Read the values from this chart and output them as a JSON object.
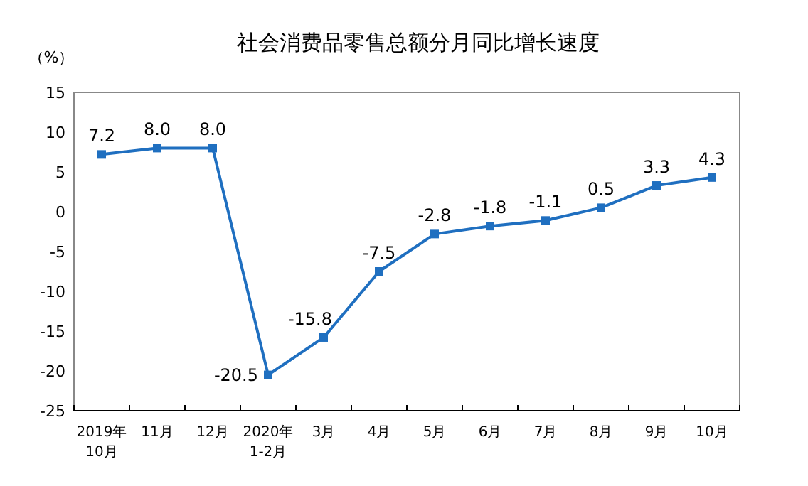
{
  "chart_data": {
    "type": "line",
    "title": "社会消费品零售总额分月同比增长速度",
    "ylabel": "（%）",
    "categories": [
      "2019年\n10月",
      "11月",
      "12月",
      "2020年\n1-2月",
      "3月",
      "4月",
      "5月",
      "6月",
      "7月",
      "8月",
      "9月",
      "10月"
    ],
    "series": [
      {
        "color": "#1f6fc0",
        "values": [
          7.2,
          8.0,
          8.0,
          -20.5,
          -15.8,
          -7.5,
          -2.8,
          -1.8,
          -1.1,
          0.5,
          3.3,
          4.3
        ],
        "value_labels": [
          "7.2",
          "8.0",
          "8.0",
          "-20.5",
          "-15.8",
          "-7.5",
          "-2.8",
          "-1.8",
          "-1.1",
          "0.5",
          "3.3",
          "4.3"
        ]
      }
    ],
    "ylim": [
      -25,
      15
    ],
    "yticks": [
      15,
      10,
      5,
      0,
      -5,
      -10,
      -15,
      -20,
      -25
    ],
    "marker": "square",
    "line_style": "solid"
  }
}
